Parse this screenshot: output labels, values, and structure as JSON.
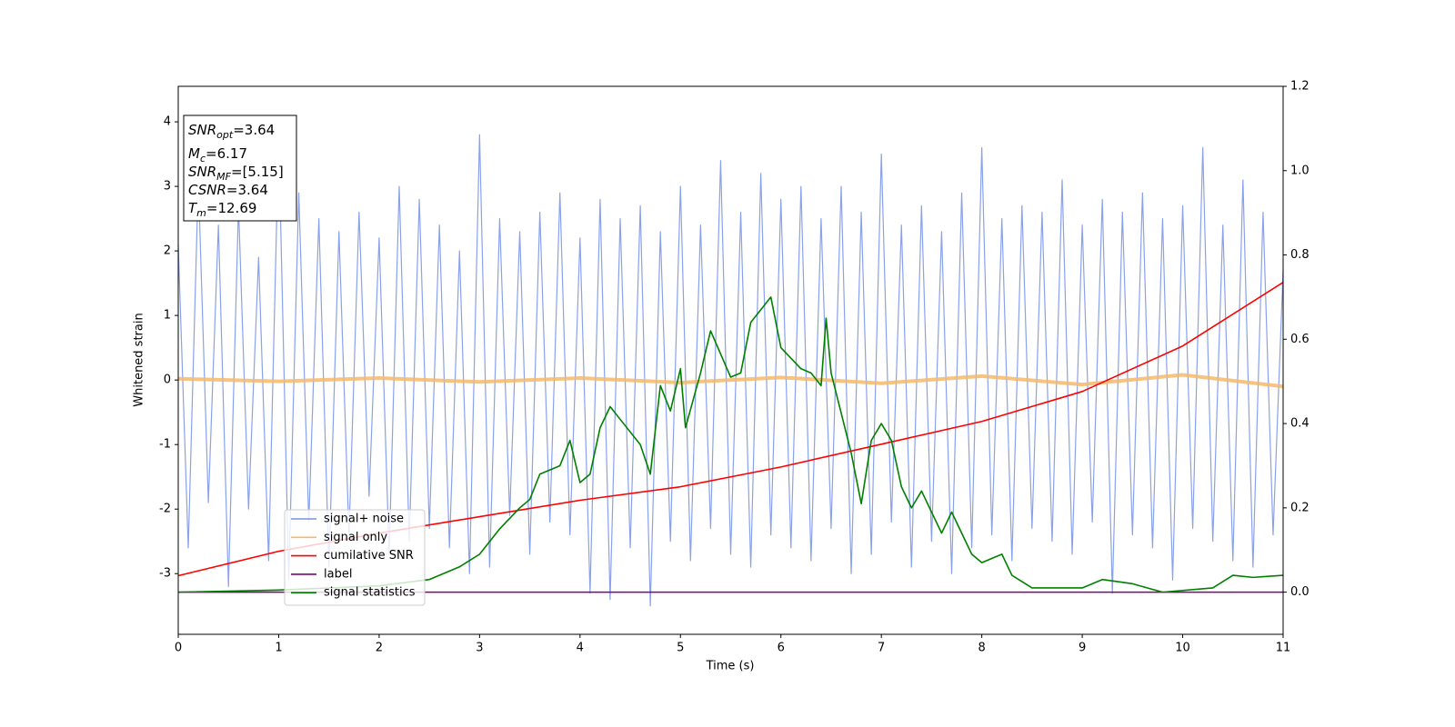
{
  "chart_data": {
    "type": "line",
    "xlabel": "Time (s)",
    "ylabel": "Whitened strain",
    "xlim": [
      0,
      11
    ],
    "xticks": [
      0,
      1,
      2,
      3,
      4,
      5,
      6,
      7,
      8,
      9,
      10,
      11
    ],
    "ylim": [
      -3.94,
      4.55
    ],
    "yticks": [
      -3,
      -2,
      -1,
      0,
      1,
      2,
      3,
      4
    ],
    "y2lim": [
      -0.1,
      1.2
    ],
    "y2ticks": [
      {
        "value": 0,
        "label": "0.0"
      },
      0.2,
      0.4,
      0.6,
      0.8,
      {
        "value": 1,
        "label": "1.0"
      },
      1.2
    ],
    "legend_loc": "lower left",
    "annotation": [
      {
        "name": "SNR",
        "sub": "opt",
        "rest": "=3.64"
      },
      {
        "name": "M",
        "sub": "c",
        "rest": "=6.17"
      },
      {
        "name": "SNR",
        "sub": "MF",
        "rest": "=[5.15]"
      },
      {
        "name": "CSNR",
        "sub": null,
        "rest": "=3.64"
      },
      {
        "name": "T",
        "sub": "m",
        "rest": "=12.69"
      }
    ],
    "series": [
      {
        "name": "signal+ noise",
        "color": "#7690e8",
        "axis": "y",
        "x": [
          0,
          0.1,
          0.2,
          0.3,
          0.4,
          0.5,
          0.6,
          0.7,
          0.8,
          0.9,
          1,
          1.1,
          1.2,
          1.3,
          1.4,
          1.5,
          1.6,
          1.7,
          1.8,
          1.9,
          2,
          2.1,
          2.2,
          2.3,
          2.4,
          2.5,
          2.6,
          2.7,
          2.8,
          2.9,
          3,
          3.1,
          3.2,
          3.3,
          3.4,
          3.5,
          3.6,
          3.7,
          3.8,
          3.9,
          4,
          4.1,
          4.2,
          4.3,
          4.4,
          4.5,
          4.6,
          4.7,
          4.8,
          4.9,
          5,
          5.1,
          5.2,
          5.3,
          5.4,
          5.5,
          5.6,
          5.7,
          5.8,
          5.9,
          6,
          6.1,
          6.2,
          6.3,
          6.4,
          6.5,
          6.6,
          6.7,
          6.8,
          6.9,
          7,
          7.1,
          7.2,
          7.3,
          7.4,
          7.5,
          7.6,
          7.7,
          7.8,
          7.9,
          8,
          8.1,
          8.2,
          8.3,
          8.4,
          8.5,
          8.6,
          8.7,
          8.8,
          8.9,
          9,
          9.1,
          9.2,
          9.3,
          9.4,
          9.5,
          9.6,
          9.7,
          9.8,
          9.9,
          10,
          10.1,
          10.2,
          10.3,
          10.4,
          10.5,
          10.6,
          10.7,
          10.8,
          10.9,
          11
        ],
        "values": [
          2.1,
          -2.6,
          3.1,
          -1.9,
          2.4,
          -3.2,
          2.7,
          -2.0,
          1.9,
          -2.8,
          3.8,
          -3.1,
          2.9,
          -2.2,
          2.5,
          -2.9,
          2.3,
          -2.4,
          2.6,
          -1.8,
          2.2,
          -2.7,
          3.0,
          -2.5,
          2.8,
          -2.3,
          2.4,
          -2.6,
          2.0,
          -3.0,
          3.8,
          -2.9,
          2.5,
          -2.1,
          2.3,
          -2.7,
          2.6,
          -2.2,
          2.9,
          -2.4,
          2.2,
          -3.3,
          2.8,
          -3.4,
          2.5,
          -2.6,
          2.7,
          -3.5,
          2.3,
          -2.5,
          3.0,
          -2.8,
          2.4,
          -2.3,
          3.4,
          -2.7,
          2.6,
          -2.9,
          3.2,
          -2.4,
          2.8,
          -2.6,
          3.0,
          -2.8,
          2.5,
          -2.3,
          3.0,
          -3.0,
          2.6,
          -2.7,
          3.5,
          -2.2,
          2.4,
          -2.9,
          2.7,
          -2.5,
          2.3,
          -3.0,
          2.9,
          -2.6,
          3.6,
          -2.4,
          2.5,
          -2.8,
          2.7,
          -2.3,
          2.6,
          -2.5,
          3.1,
          -2.7,
          2.4,
          -2.2,
          2.8,
          -3.3,
          2.6,
          -2.4,
          2.9,
          -2.6,
          2.5,
          -3.1,
          2.7,
          -2.3,
          3.6,
          -2.5,
          2.4,
          -2.8,
          3.1,
          -2.9,
          2.6,
          -2.4,
          1.7
        ]
      },
      {
        "name": "signal only",
        "color": "#f5b96a",
        "axis": "y",
        "x": [
          0,
          1,
          2,
          3,
          4,
          5,
          6,
          7,
          8,
          9,
          10,
          11
        ],
        "values": [
          0.02,
          -0.02,
          0.03,
          -0.03,
          0.03,
          -0.04,
          0.04,
          -0.05,
          0.06,
          -0.07,
          0.08,
          -0.1
        ]
      },
      {
        "name": "cumilative SNR",
        "color": "#ff0000",
        "axis": "y2",
        "x": [
          0,
          1,
          2,
          3,
          4,
          5,
          6,
          7,
          8,
          9,
          10,
          11
        ],
        "values": [
          0.039,
          0.097,
          0.14,
          0.179,
          0.218,
          0.25,
          0.297,
          0.351,
          0.405,
          0.476,
          0.584,
          0.735
        ]
      },
      {
        "name": "label",
        "color": "#800080",
        "axis": "y2",
        "x": [
          0,
          11
        ],
        "values": [
          0,
          0
        ]
      },
      {
        "name": "signal statistics",
        "color": "#008000",
        "axis": "y2",
        "x": [
          0,
          1,
          2,
          2.5,
          2.8,
          3.0,
          3.2,
          3.4,
          3.5,
          3.6,
          3.8,
          3.9,
          4.0,
          4.1,
          4.2,
          4.3,
          4.4,
          4.6,
          4.7,
          4.8,
          4.9,
          5.0,
          5.05,
          5.2,
          5.3,
          5.5,
          5.6,
          5.7,
          5.9,
          6.0,
          6.2,
          6.3,
          6.4,
          6.45,
          6.5,
          6.7,
          6.8,
          6.9,
          7.0,
          7.1,
          7.2,
          7.3,
          7.4,
          7.6,
          7.7,
          7.9,
          8.0,
          8.2,
          8.3,
          8.5,
          9.0,
          9.2,
          9.5,
          9.8,
          10.3,
          10.5,
          10.7,
          11
        ],
        "values": [
          0,
          0.005,
          0.015,
          0.03,
          0.06,
          0.09,
          0.15,
          0.2,
          0.22,
          0.28,
          0.3,
          0.36,
          0.26,
          0.28,
          0.39,
          0.44,
          0.41,
          0.35,
          0.28,
          0.49,
          0.43,
          0.53,
          0.39,
          0.52,
          0.62,
          0.51,
          0.52,
          0.64,
          0.7,
          0.58,
          0.53,
          0.52,
          0.49,
          0.65,
          0.52,
          0.33,
          0.21,
          0.36,
          0.4,
          0.36,
          0.25,
          0.2,
          0.24,
          0.14,
          0.19,
          0.09,
          0.07,
          0.09,
          0.04,
          0.01,
          0.01,
          0.03,
          0.02,
          0,
          0.01,
          0.04,
          0.035,
          0.04
        ]
      }
    ]
  }
}
